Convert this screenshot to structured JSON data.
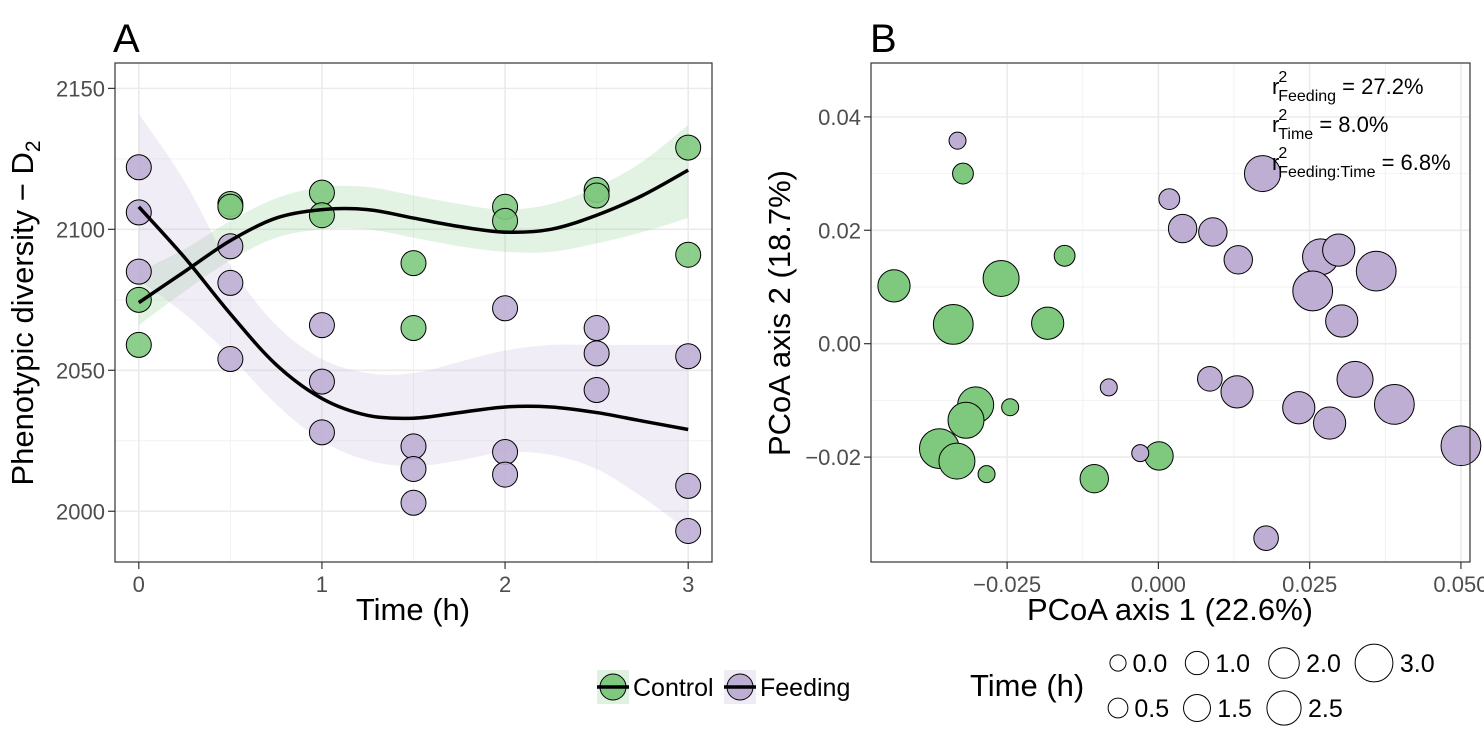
{
  "chart_data": [
    {
      "type": "scatter",
      "panel": "A",
      "xlabel": "Time (h)",
      "ylabel": "Phenotypic diversity − D",
      "ylabel_sub": "2",
      "xlim": [
        -0.13,
        3.13
      ],
      "ylim": [
        1982,
        2159
      ],
      "xticks": [
        0,
        1,
        2,
        3
      ],
      "yticks": [
        2000,
        2050,
        2100,
        2150
      ],
      "grid": true,
      "series": [
        {
          "name": "Control",
          "color": "#7fc97f",
          "points": [
            {
              "x": 0,
              "y": 2075
            },
            {
              "x": 0,
              "y": 2059
            },
            {
              "x": 0.5,
              "y": 2109
            },
            {
              "x": 0.5,
              "y": 2108
            },
            {
              "x": 1,
              "y": 2113
            },
            {
              "x": 1,
              "y": 2105
            },
            {
              "x": 1.5,
              "y": 2088
            },
            {
              "x": 1.5,
              "y": 2065
            },
            {
              "x": 2,
              "y": 2108
            },
            {
              "x": 2,
              "y": 2103
            },
            {
              "x": 2.5,
              "y": 2114
            },
            {
              "x": 2.5,
              "y": 2112
            },
            {
              "x": 3,
              "y": 2129
            },
            {
              "x": 3,
              "y": 2091
            }
          ],
          "fit": {
            "x": [
              0,
              0.25,
              0.5,
              0.75,
              1,
              1.25,
              1.5,
              1.75,
              2,
              2.25,
              2.5,
              2.75,
              3
            ],
            "y": [
              2074,
              2085,
              2096,
              2104,
              2107,
              2107,
              2104,
              2101,
              2099,
              2100,
              2105,
              2112,
              2121
            ],
            "lower": [
              2066,
              2078,
              2089,
              2097,
              2100,
              2100,
              2097,
              2094,
              2092,
              2092,
              2095,
              2099,
              2104
            ],
            "upper": [
              2085,
              2093,
              2103,
              2111,
              2115,
              2115,
              2112,
              2109,
              2107,
              2109,
              2115,
              2124,
              2137
            ]
          }
        },
        {
          "name": "Feeding",
          "color": "#beaed4",
          "points": [
            {
              "x": 0,
              "y": 2122
            },
            {
              "x": 0,
              "y": 2106
            },
            {
              "x": 0,
              "y": 2085
            },
            {
              "x": 0.5,
              "y": 2094
            },
            {
              "x": 0.5,
              "y": 2081
            },
            {
              "x": 0.5,
              "y": 2054
            },
            {
              "x": 1,
              "y": 2066
            },
            {
              "x": 1,
              "y": 2046
            },
            {
              "x": 1,
              "y": 2028
            },
            {
              "x": 1.5,
              "y": 2023
            },
            {
              "x": 1.5,
              "y": 2015
            },
            {
              "x": 1.5,
              "y": 2003
            },
            {
              "x": 2,
              "y": 2072
            },
            {
              "x": 2,
              "y": 2021
            },
            {
              "x": 2,
              "y": 2013
            },
            {
              "x": 2.5,
              "y": 2065
            },
            {
              "x": 2.5,
              "y": 2056
            },
            {
              "x": 2.5,
              "y": 2043
            },
            {
              "x": 3,
              "y": 2055
            },
            {
              "x": 3,
              "y": 2009
            },
            {
              "x": 3,
              "y": 1993
            }
          ],
          "fit": {
            "x": [
              0,
              0.25,
              0.5,
              0.75,
              1,
              1.25,
              1.5,
              1.75,
              2,
              2.25,
              2.5,
              2.75,
              3
            ],
            "y": [
              2108,
              2090,
              2070,
              2052,
              2040,
              2034,
              2033,
              2035,
              2037,
              2037,
              2035,
              2032,
              2029
            ],
            "lower": [
              2082,
              2070,
              2055,
              2038,
              2025,
              2018,
              2016,
              2018,
              2021,
              2020,
              2015,
              2005,
              1993
            ],
            "upper": [
              2141,
              2117,
              2087,
              2066,
              2054,
              2049,
              2049,
              2053,
              2057,
              2059,
              2059,
              2059,
              2059
            ]
          }
        }
      ]
    },
    {
      "type": "scatter",
      "panel": "B",
      "xlabel": "PCoA axis 1 (22.6%)",
      "ylabel": "PCoA axis 2 (18.7%)",
      "xlim": [
        -0.0475,
        0.0515
      ],
      "ylim": [
        -0.0385,
        0.0495
      ],
      "xticks": [
        -0.025,
        0.0,
        0.025,
        0.05
      ],
      "xtick_labels": [
        "−0.025",
        "0.000",
        "0.025",
        "0.050"
      ],
      "yticks": [
        -0.02,
        0.0,
        0.02,
        0.04
      ],
      "ytick_labels": [
        "−0.02",
        "0.00",
        "0.02",
        "0.04"
      ],
      "grid": true,
      "size_variable": "Time (h)",
      "annotations": [
        {
          "main": "r",
          "sup": "2",
          "sub": "Feeding",
          "value": " = 27.2%"
        },
        {
          "main": "r",
          "sup": "2",
          "sub": "Time",
          "value": " = 8.0%"
        },
        {
          "main": "r",
          "sup": "2",
          "sub": "Feeding:Time",
          "value": " = 6.8%"
        }
      ],
      "series": [
        {
          "name": "Control",
          "color": "#7fc97f",
          "points": [
            {
              "x": -0.0323,
              "y": 0.03,
              "time": 0.5
            },
            {
              "x": -0.0155,
              "y": 0.0155,
              "time": 0.5
            },
            {
              "x": -0.0437,
              "y": 0.0102,
              "time": 2.0
            },
            {
              "x": -0.026,
              "y": 0.0115,
              "time": 2.5
            },
            {
              "x": -0.0339,
              "y": 0.0034,
              "time": 3.0
            },
            {
              "x": -0.0183,
              "y": 0.0036,
              "time": 2.0
            },
            {
              "x": -0.0302,
              "y": -0.0108,
              "time": 2.5
            },
            {
              "x": -0.0318,
              "y": -0.0135,
              "time": 2.5
            },
            {
              "x": -0.0245,
              "y": -0.0112,
              "time": 0.0
            },
            {
              "x": -0.0362,
              "y": -0.0185,
              "time": 3.0
            },
            {
              "x": -0.0333,
              "y": -0.0207,
              "time": 2.5
            },
            {
              "x": -0.0284,
              "y": -0.023,
              "time": 0.0
            },
            {
              "x": 0.0001,
              "y": -0.0198,
              "time": 1.5
            },
            {
              "x": -0.0106,
              "y": -0.0238,
              "time": 1.5
            }
          ]
        },
        {
          "name": "Feeding",
          "color": "#beaed4",
          "points": [
            {
              "x": -0.0332,
              "y": 0.0358,
              "time": 0.0
            },
            {
              "x": 0.0018,
              "y": 0.0255,
              "time": 0.5
            },
            {
              "x": 0.004,
              "y": 0.0203,
              "time": 1.5
            },
            {
              "x": 0.009,
              "y": 0.0197,
              "time": 1.5
            },
            {
              "x": 0.0132,
              "y": 0.0148,
              "time": 1.5
            },
            {
              "x": 0.0172,
              "y": 0.03,
              "time": 2.5
            },
            {
              "x": 0.0268,
              "y": 0.0153,
              "time": 2.5
            },
            {
              "x": 0.0298,
              "y": 0.0165,
              "time": 2.0
            },
            {
              "x": 0.036,
              "y": 0.0128,
              "time": 3.0
            },
            {
              "x": 0.0255,
              "y": 0.0093,
              "time": 3.0
            },
            {
              "x": 0.0303,
              "y": 0.004,
              "time": 2.0
            },
            {
              "x": -0.0082,
              "y": -0.0077,
              "time": 0.0
            },
            {
              "x": 0.0085,
              "y": -0.0062,
              "time": 1.0
            },
            {
              "x": 0.013,
              "y": -0.0085,
              "time": 2.0
            },
            {
              "x": 0.0325,
              "y": -0.0063,
              "time": 2.5
            },
            {
              "x": 0.039,
              "y": -0.0107,
              "time": 3.0
            },
            {
              "x": 0.0232,
              "y": -0.0113,
              "time": 2.0
            },
            {
              "x": 0.0283,
              "y": -0.014,
              "time": 2.0
            },
            {
              "x": -0.003,
              "y": -0.0193,
              "time": 0.0
            },
            {
              "x": 0.05,
              "y": -0.018,
              "time": 3.0
            },
            {
              "x": 0.0178,
              "y": -0.0343,
              "time": 1.0
            }
          ]
        }
      ]
    }
  ],
  "panel_tags": {
    "a": "A",
    "b": "B"
  },
  "legend_group": {
    "items": [
      {
        "label": "Control",
        "color": "#7fc97f"
      },
      {
        "label": "Feeding",
        "color": "#beaed4"
      }
    ]
  },
  "legend_size": {
    "title": "Time (h)",
    "items": [
      {
        "label": "0.0",
        "time": 0.0
      },
      {
        "label": "1.0",
        "time": 1.0
      },
      {
        "label": "2.0",
        "time": 2.0
      },
      {
        "label": "3.0",
        "time": 3.0
      },
      {
        "label": "0.5",
        "time": 0.5
      },
      {
        "label": "1.5",
        "time": 1.5
      },
      {
        "label": "2.5",
        "time": 2.5
      }
    ]
  }
}
